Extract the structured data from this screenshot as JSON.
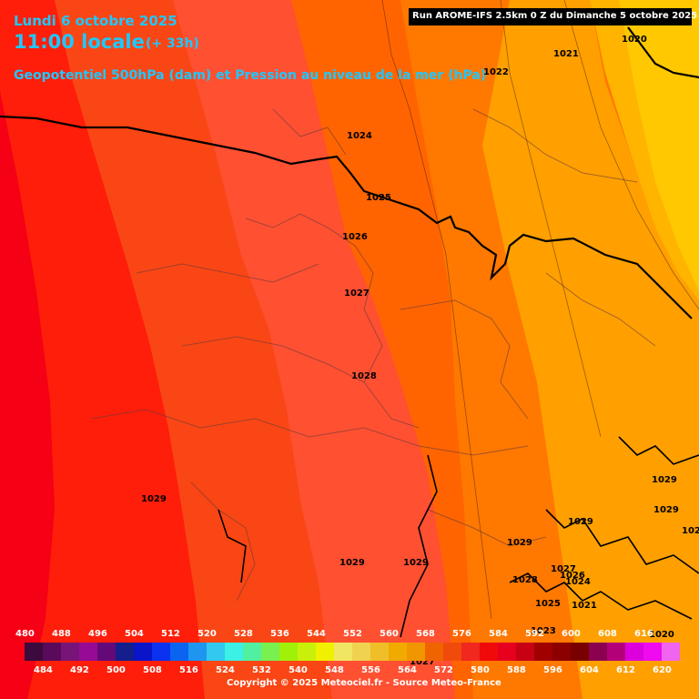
{
  "header": {
    "date": "Lundi 6 octobre 2025",
    "time": "11:00 locale",
    "lead": "(+ 33h)",
    "parameter": "Geopotentiel 500hPa (dam) et Pression au niveau de la mer (hPa)",
    "run": "Run AROME-IFS 2.5km 0 Z du Dimanche 5 octobre 2025"
  },
  "isobar_labels": [
    "1020",
    "1021",
    "1022",
    "1024",
    "1025",
    "1026",
    "1027",
    "1028",
    "1029",
    "1029",
    "1029",
    "1029",
    "1029",
    "1029",
    "1029",
    "1027",
    "1028",
    "1026",
    "1025",
    "1024",
    "1021",
    "1023",
    "1020",
    "1027",
    "1026"
  ],
  "legend": {
    "top_labels": [
      "480",
      "488",
      "496",
      "504",
      "512",
      "520",
      "528",
      "536",
      "544",
      "552",
      "560",
      "568",
      "576",
      "584",
      "592",
      "600",
      "608",
      "616"
    ],
    "bottom_labels": [
      "484",
      "492",
      "500",
      "508",
      "516",
      "524",
      "532",
      "540",
      "548",
      "556",
      "564",
      "572",
      "580",
      "588",
      "596",
      "604",
      "612",
      "620"
    ],
    "colors": [
      "#3c0a3c",
      "#5a0a5a",
      "#781478",
      "#960a96",
      "#640a78",
      "#141e8c",
      "#0a14c8",
      "#0a32f0",
      "#0a64f0",
      "#1e96f0",
      "#32c8f0",
      "#3cf0e6",
      "#50f0a0",
      "#78f050",
      "#a0f00a",
      "#c8f00a",
      "#f0f000",
      "#f0e664",
      "#f0d250",
      "#f0be28",
      "#f0aa00",
      "#f09600",
      "#f06400",
      "#f04b0a",
      "#f0281e",
      "#f00a0a",
      "#e6001e",
      "#c80014",
      "#a00000",
      "#8c0000",
      "#780000",
      "#8c0050",
      "#b40078",
      "#dc00dc",
      "#f00af0",
      "#f064f0"
    ]
  },
  "copyright": "Copyright © 2025 Meteociel.fr - Source Meteo-France"
}
